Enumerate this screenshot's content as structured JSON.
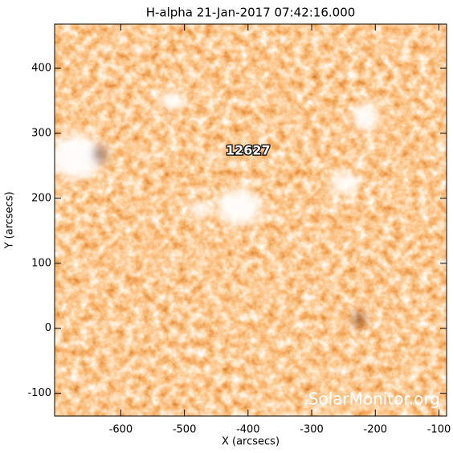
{
  "chart_data": {
    "type": "image",
    "title": "H-alpha 21-Jan-2017 07:42:16.000",
    "x_label": "X (arcsecs)",
    "y_label": "Y (arcsecs)",
    "xlim": [
      -704,
      -88
    ],
    "xticks": [
      -600,
      -500,
      -400,
      -300,
      -200,
      -100
    ],
    "ylim": [
      -135,
      468
    ],
    "yticks": [
      -100,
      0,
      100,
      200,
      300,
      400
    ],
    "annotations": [
      {
        "text": "12627",
        "x": -400,
        "y": 273
      }
    ],
    "watermark": "SolarMonitor.org"
  }
}
